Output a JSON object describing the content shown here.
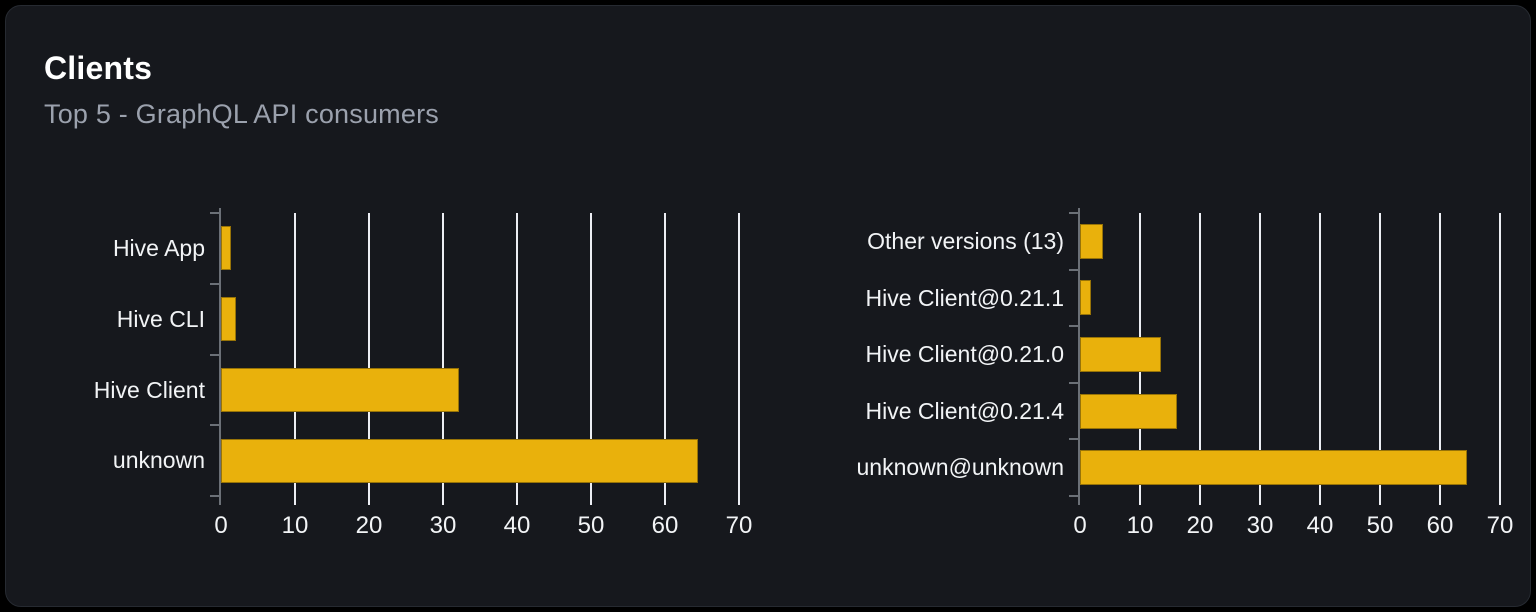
{
  "card": {
    "title": "Clients",
    "subtitle": "Top 5 - GraphQL API consumers"
  },
  "colors": {
    "bar": "#e9b10c",
    "gridline": "#eceef3",
    "axis": "#6b7077",
    "label_text": "#f2f4f6",
    "subtitle_text": "#9ba1ad",
    "title_text": "#ffffff",
    "card_background": "#16181d",
    "page_background": "#000000"
  },
  "chart_data": [
    {
      "type": "bar",
      "orientation": "horizontal",
      "name": "clients",
      "categories": [
        "Hive App",
        "Hive CLI",
        "Hive Client",
        "unknown"
      ],
      "values": [
        1.3,
        2,
        32.2,
        64.5
      ],
      "xlim": [
        0,
        70
      ],
      "xticks": [
        0,
        10,
        20,
        30,
        40,
        50,
        60,
        70
      ],
      "grid": true,
      "legend": false
    },
    {
      "type": "bar",
      "orientation": "horizontal",
      "name": "client-versions",
      "categories": [
        "Other versions (13)",
        "Hive Client@0.21.1",
        "Hive Client@0.21.0",
        "Hive Client@0.21.4",
        "unknown@unknown"
      ],
      "values": [
        3.8,
        1.8,
        13.5,
        16.2,
        64.5
      ],
      "xlim": [
        0,
        70
      ],
      "xticks": [
        0,
        10,
        20,
        30,
        40,
        50,
        60,
        70
      ],
      "grid": true,
      "legend": false
    }
  ]
}
